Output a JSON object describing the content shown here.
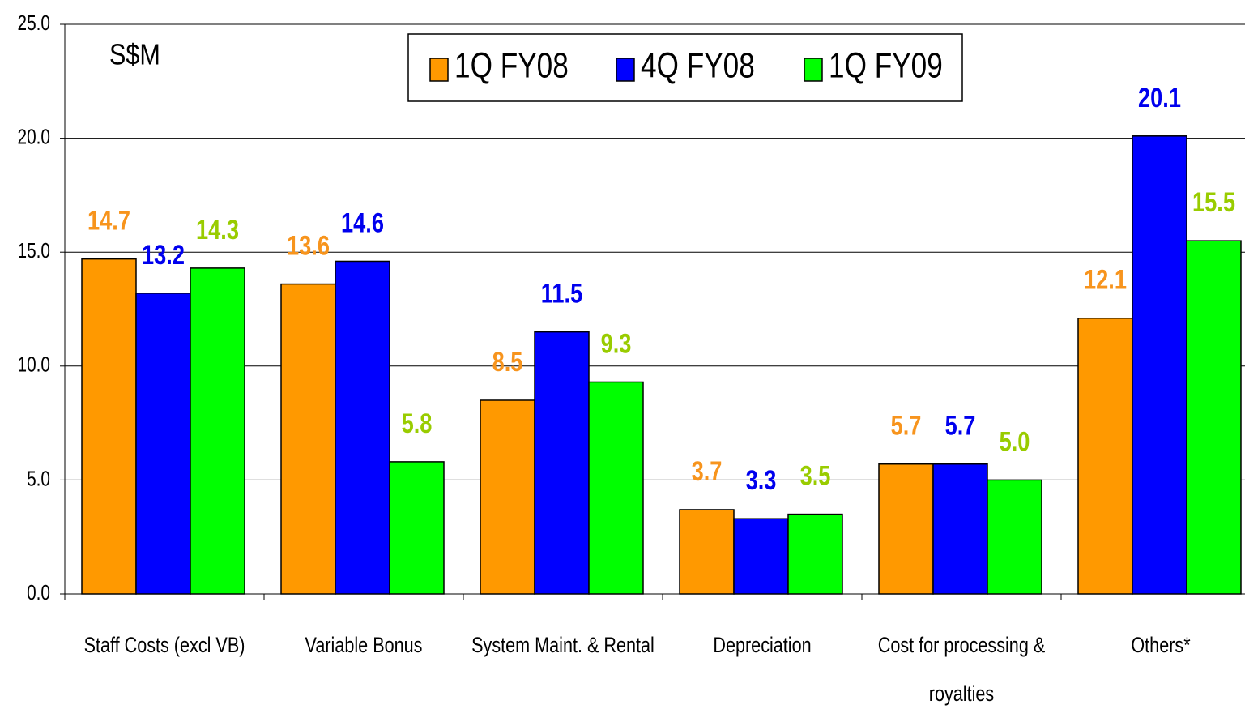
{
  "chart_data": {
    "type": "bar",
    "unit_label": "S$M",
    "categories": [
      "Staff Costs (excl VB)",
      "Variable Bonus",
      "System Maint. & Rental",
      "Depreciation",
      "Cost for processing & royalties",
      "Others*"
    ],
    "series": [
      {
        "name": "1Q FY08",
        "color": "#ff9900",
        "label_color": "#f7941d",
        "values": [
          14.7,
          13.6,
          8.5,
          3.7,
          5.7,
          12.1
        ],
        "value_labels": [
          "14.7",
          "13.6",
          "8.5",
          "3.7",
          "5.7",
          "12.1"
        ]
      },
      {
        "name": "4Q FY08",
        "color": "#0000ff",
        "label_color": "#0000ee",
        "values": [
          13.2,
          14.6,
          11.5,
          3.3,
          5.7,
          20.1
        ],
        "value_labels": [
          "13.2",
          "14.6",
          "11.5",
          "3.3",
          "5.7",
          "20.1"
        ]
      },
      {
        "name": "1Q FY09",
        "color": "#00ff00",
        "label_color": "#99cc00",
        "values": [
          14.3,
          5.8,
          9.3,
          3.5,
          5.0,
          15.5
        ],
        "value_labels": [
          "14.3",
          "5.8",
          "9.3",
          "3.5",
          "5.0",
          "15.5"
        ]
      }
    ],
    "ylim": [
      0,
      25
    ],
    "yticks": [
      {
        "value": 0,
        "label": "0.0"
      },
      {
        "value": 5,
        "label": "5.0"
      },
      {
        "value": 10,
        "label": "10.0"
      },
      {
        "value": 15,
        "label": "15.0"
      },
      {
        "value": 20,
        "label": "20.0"
      },
      {
        "value": 25,
        "label": "25.0"
      }
    ],
    "grid": true,
    "legend": "top"
  }
}
